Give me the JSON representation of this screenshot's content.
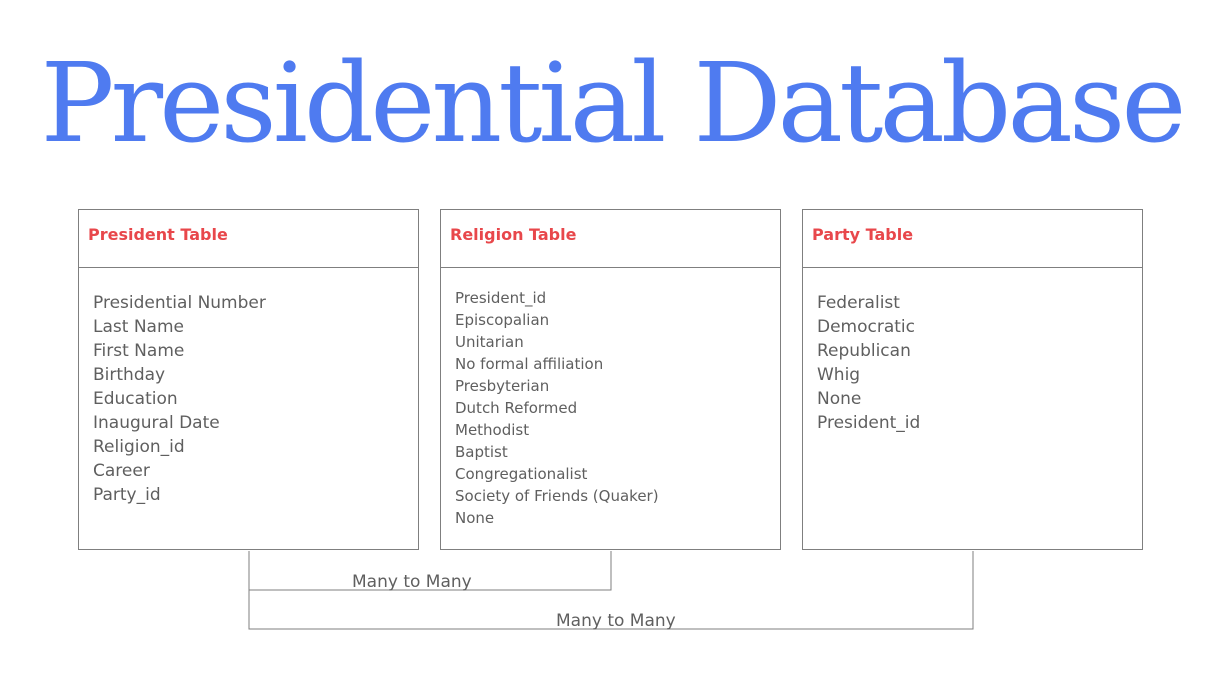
{
  "title": "Presidential Database",
  "tables": {
    "president": {
      "title": "President Table",
      "fields": [
        "Presidential Number",
        "Last Name",
        "First Name",
        "Birthday",
        "Education",
        "Inaugural Date",
        "Religion_id",
        "Career",
        "Party_id"
      ]
    },
    "religion": {
      "title": "Religion Table",
      "fields": [
        "President_id",
        "Episcopalian",
        "Unitarian",
        "No formal affiliation",
        "Presbyterian",
        "Dutch Reformed",
        "Methodist",
        "Baptist",
        "Congregationalist",
        "Society of Friends (Quaker)",
        "None"
      ]
    },
    "party": {
      "title": "Party Table",
      "fields": [
        "Federalist",
        "Democratic",
        "Republican",
        "Whig",
        "None",
        "President_id"
      ]
    }
  },
  "relationships": [
    {
      "from": "President Table",
      "to": "Religion Table",
      "label": "Many to Many"
    },
    {
      "from": "President Table",
      "to": "Party Table",
      "label": "Many to Many"
    }
  ],
  "colors": {
    "title": "#4f7bf0",
    "table_header": "#e8474b",
    "text": "#5f5f5f",
    "border": "#7f7f7f"
  }
}
